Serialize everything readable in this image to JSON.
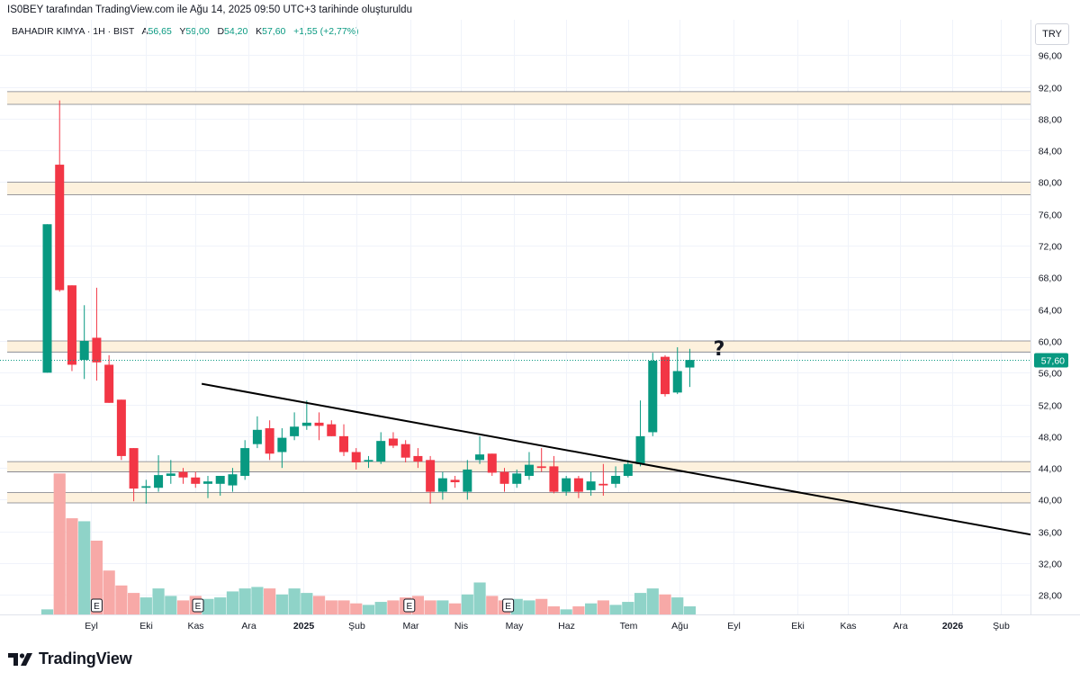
{
  "header": {
    "text": "IS0BEY tarafından TradingView.com ile Ağu 14, 2025 09:50 UTC+3 tarihinde oluşturuldu"
  },
  "legend": {
    "symbol": "BAHADIR KIMYA · 1H · BIST",
    "open_label": "A",
    "open": "56,65",
    "high_label": "Y",
    "high": "59,00",
    "low_label": "D",
    "low": "54,20",
    "close_label": "K",
    "close": "57,60",
    "change": "+1,55 (+2,77%)"
  },
  "currency": "TRY",
  "brand": "TradingView",
  "colors": {
    "up": "#089981",
    "down": "#f23645",
    "up_volume": "#8fd3c8",
    "down_volume": "#f7a9a7",
    "zone_fill": "#fdf1dd",
    "price_line": "#089981"
  },
  "chart_data": {
    "type": "candlestick",
    "ylim": [
      26,
      100
    ],
    "price_ticks": [
      "96,00",
      "92,00",
      "88,00",
      "84,00",
      "80,00",
      "76,00",
      "72,00",
      "68,00",
      "64,00",
      "60,00",
      "56,00",
      "52,00",
      "48,00",
      "44,00",
      "40,00",
      "36,00",
      "32,00",
      "28,00"
    ],
    "last_price": "57,60",
    "x_labels": [
      {
        "label": "Eyl",
        "i": 3.5,
        "bold": false
      },
      {
        "label": "Eki",
        "i": 8,
        "bold": false
      },
      {
        "label": "Kas",
        "i": 12,
        "bold": false
      },
      {
        "label": "Ara",
        "i": 16.3,
        "bold": false
      },
      {
        "label": "2025",
        "i": 20.7,
        "bold": true
      },
      {
        "label": "Şub",
        "i": 25,
        "bold": false
      },
      {
        "label": "Mar",
        "i": 29.4,
        "bold": false
      },
      {
        "label": "Nis",
        "i": 33.5,
        "bold": false
      },
      {
        "label": "May",
        "i": 37.8,
        "bold": false
      },
      {
        "label": "Haz",
        "i": 42,
        "bold": false
      },
      {
        "label": "Tem",
        "i": 47,
        "bold": false
      },
      {
        "label": "Ağu",
        "i": 51.2,
        "bold": false
      },
      {
        "label": "Eyl",
        "i": 55.5,
        "bold": false
      },
      {
        "label": "Eki",
        "i": 60.7,
        "bold": false
      },
      {
        "label": "Kas",
        "i": 64.8,
        "bold": false
      },
      {
        "label": "Ara",
        "i": 69,
        "bold": false
      },
      {
        "label": "2026",
        "i": 73.2,
        "bold": true
      },
      {
        "label": "Şub",
        "i": 77.2,
        "bold": false
      }
    ],
    "candles": [
      {
        "o": 56.0,
        "h": 74.7,
        "l": 56.0,
        "c": 74.7,
        "v": 0.4
      },
      {
        "o": 82.2,
        "h": 90.3,
        "l": 66.2,
        "c": 66.4,
        "v": 9.5
      },
      {
        "o": 67.0,
        "h": 67.0,
        "l": 56.2,
        "c": 57.0,
        "v": 6.5
      },
      {
        "o": 57.6,
        "h": 64.5,
        "l": 55.2,
        "c": 60.0,
        "v": 6.3
      },
      {
        "o": 60.4,
        "h": 66.7,
        "l": 55.0,
        "c": 57.3,
        "v": 5.0
      },
      {
        "o": 57.0,
        "h": 58.2,
        "l": 52.2,
        "c": 52.2,
        "v": 3.0
      },
      {
        "o": 52.6,
        "h": 52.6,
        "l": 45.0,
        "c": 45.5,
        "v": 2.0
      },
      {
        "o": 46.5,
        "h": 46.5,
        "l": 39.8,
        "c": 41.4,
        "v": 1.5
      },
      {
        "o": 41.5,
        "h": 42.5,
        "l": 39.5,
        "c": 41.7,
        "v": 1.2
      },
      {
        "o": 41.5,
        "h": 45.6,
        "l": 41.0,
        "c": 43.1,
        "v": 1.8
      },
      {
        "o": 43.0,
        "h": 45.0,
        "l": 42.0,
        "c": 43.3,
        "v": 1.3
      },
      {
        "o": 43.5,
        "h": 44.0,
        "l": 42.0,
        "c": 42.8,
        "v": 1.0
      },
      {
        "o": 42.8,
        "h": 43.5,
        "l": 41.5,
        "c": 42.0,
        "v": 1.3
      },
      {
        "o": 42.0,
        "h": 43.0,
        "l": 40.2,
        "c": 42.3,
        "v": 1.1
      },
      {
        "o": 42.0,
        "h": 42.8,
        "l": 40.5,
        "c": 43.0,
        "v": 1.2
      },
      {
        "o": 41.8,
        "h": 44.0,
        "l": 41.0,
        "c": 43.2,
        "v": 1.6
      },
      {
        "o": 43.0,
        "h": 47.5,
        "l": 42.5,
        "c": 46.5,
        "v": 1.8
      },
      {
        "o": 47.0,
        "h": 50.5,
        "l": 46.5,
        "c": 48.8,
        "v": 1.9
      },
      {
        "o": 49.0,
        "h": 50.0,
        "l": 45.0,
        "c": 45.8,
        "v": 1.8
      },
      {
        "o": 46.0,
        "h": 49.0,
        "l": 44.0,
        "c": 47.8,
        "v": 1.4
      },
      {
        "o": 48.0,
        "h": 51.0,
        "l": 47.5,
        "c": 49.2,
        "v": 1.8
      },
      {
        "o": 49.3,
        "h": 52.5,
        "l": 48.8,
        "c": 49.7,
        "v": 1.5
      },
      {
        "o": 49.7,
        "h": 51.0,
        "l": 47.5,
        "c": 49.3,
        "v": 1.3
      },
      {
        "o": 49.5,
        "h": 50.0,
        "l": 48.0,
        "c": 48.0,
        "v": 1.0
      },
      {
        "o": 48.0,
        "h": 49.5,
        "l": 45.5,
        "c": 46.0,
        "v": 1.0
      },
      {
        "o": 46.0,
        "h": 46.5,
        "l": 43.8,
        "c": 44.7,
        "v": 0.8
      },
      {
        "o": 44.8,
        "h": 45.5,
        "l": 44.0,
        "c": 45.0,
        "v": 0.7
      },
      {
        "o": 44.8,
        "h": 48.5,
        "l": 44.5,
        "c": 47.4,
        "v": 0.9
      },
      {
        "o": 47.7,
        "h": 48.5,
        "l": 46.5,
        "c": 46.8,
        "v": 1.0
      },
      {
        "o": 47.0,
        "h": 47.5,
        "l": 44.7,
        "c": 45.3,
        "v": 1.2
      },
      {
        "o": 45.5,
        "h": 46.5,
        "l": 44.0,
        "c": 44.8,
        "v": 1.3
      },
      {
        "o": 45.0,
        "h": 45.5,
        "l": 39.5,
        "c": 41.0,
        "v": 1.0
      },
      {
        "o": 41.0,
        "h": 43.5,
        "l": 40.0,
        "c": 42.7,
        "v": 1.0
      },
      {
        "o": 42.5,
        "h": 43.0,
        "l": 41.5,
        "c": 42.2,
        "v": 0.8
      },
      {
        "o": 41.0,
        "h": 45.0,
        "l": 40.0,
        "c": 43.8,
        "v": 1.4
      },
      {
        "o": 45.0,
        "h": 48.0,
        "l": 44.5,
        "c": 45.7,
        "v": 2.2
      },
      {
        "o": 45.8,
        "h": 45.8,
        "l": 43.0,
        "c": 43.4,
        "v": 1.3
      },
      {
        "o": 43.5,
        "h": 44.0,
        "l": 41.0,
        "c": 42.0,
        "v": 1.0
      },
      {
        "o": 42.0,
        "h": 43.8,
        "l": 41.5,
        "c": 43.3,
        "v": 1.1
      },
      {
        "o": 43.0,
        "h": 46.0,
        "l": 42.5,
        "c": 44.4,
        "v": 1.0
      },
      {
        "o": 44.2,
        "h": 46.5,
        "l": 43.5,
        "c": 44.0,
        "v": 1.1
      },
      {
        "o": 44.2,
        "h": 45.5,
        "l": 40.8,
        "c": 41.0,
        "v": 0.6
      },
      {
        "o": 41.0,
        "h": 43.0,
        "l": 40.5,
        "c": 42.7,
        "v": 0.4
      },
      {
        "o": 42.7,
        "h": 43.0,
        "l": 40.2,
        "c": 41.0,
        "v": 0.6
      },
      {
        "o": 41.2,
        "h": 43.5,
        "l": 40.5,
        "c": 42.3,
        "v": 0.8
      },
      {
        "o": 42.0,
        "h": 44.5,
        "l": 40.5,
        "c": 41.8,
        "v": 1.0
      },
      {
        "o": 42.0,
        "h": 44.2,
        "l": 41.5,
        "c": 43.0,
        "v": 0.7
      },
      {
        "o": 43.0,
        "h": 45.0,
        "l": 42.8,
        "c": 44.5,
        "v": 0.9
      },
      {
        "o": 44.5,
        "h": 52.5,
        "l": 44.2,
        "c": 48.0,
        "v": 1.5
      },
      {
        "o": 48.5,
        "h": 58.5,
        "l": 48.0,
        "c": 57.5,
        "v": 1.8
      },
      {
        "o": 58.0,
        "h": 58.2,
        "l": 53.0,
        "c": 53.3,
        "v": 1.4
      },
      {
        "o": 53.5,
        "h": 59.2,
        "l": 53.3,
        "c": 56.2,
        "v": 1.2
      },
      {
        "o": 56.65,
        "h": 59.0,
        "l": 54.2,
        "c": 57.6,
        "v": 0.6
      }
    ],
    "earnings_markers": [
      {
        "label": "E",
        "i": 4
      },
      {
        "label": "E",
        "i": 12.2
      },
      {
        "label": "E",
        "i": 29.3
      },
      {
        "label": "E",
        "i": 37.3
      }
    ],
    "zones": [
      [
        89.8,
        91.4
      ],
      [
        78.4,
        80.0
      ],
      [
        58.6,
        60.0
      ],
      [
        43.5,
        44.8
      ],
      [
        39.6,
        40.9
      ]
    ],
    "trendline": {
      "from": {
        "i": 12.5,
        "price": 54.6
      },
      "to": {
        "i": 79.6,
        "price": 35.6
      }
    },
    "annotation": "?"
  }
}
